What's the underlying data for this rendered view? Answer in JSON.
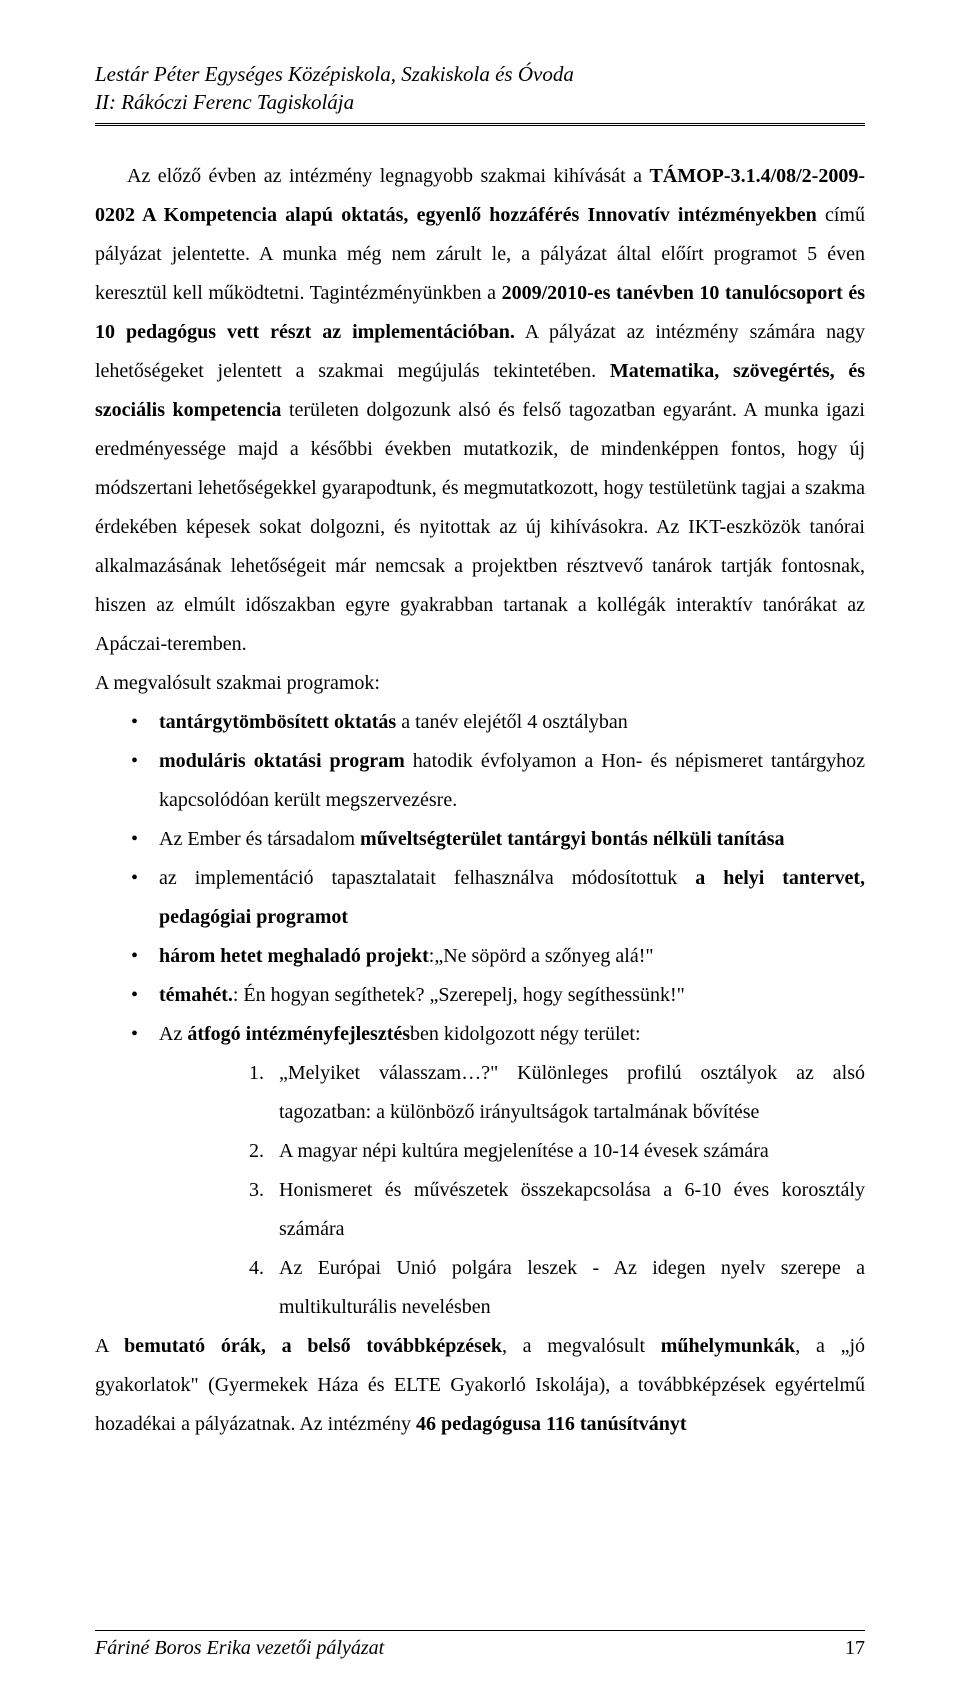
{
  "header": {
    "line1": "Lestár Péter Egységes Középiskola, Szakiskola és Óvoda",
    "line2": "II: Rákóczi Ferenc Tagiskolája"
  },
  "body": {
    "p1_pre": "Az előző évben az intézmény legnagyobb szakmai kihívását a ",
    "p1_b1": "TÁMOP-3.1.4/08/2-2009-0202 A Kompetencia alapú oktatás, egyenlő hozzáférés Innovatív intézményekben",
    "p1_mid1": " című pályázat jelentette. A munka még nem zárult le, a pályázat által előírt programot 5 éven keresztül kell működtetni. Tagintézményünkben a ",
    "p1_b2": "2009/2010-es tanévben 10 tanulócsoport és 10 pedagógus vett részt az implementációban.",
    "p1_mid2": " A pályázat az intézmény számára nagy lehetőségeket jelentett a szakmai megújulás tekintetében. ",
    "p1_b3": "Matematika, szövegértés, és szociális kompetencia ",
    "p1_end": "területen dolgozunk alsó és felső tagozatban egyaránt. A munka igazi eredményessége majd a későbbi években mutatkozik, de mindenképpen fontos, hogy új módszertani lehetőségekkel gyarapodtunk, és megmutatkozott, hogy testületünk tagjai a szakma érdekében képesek sokat dolgozni, és nyitottak az új kihívásokra. Az IKT-eszközök tanórai alkalmazásának lehetőségeit már nemcsak a projektben résztvevő tanárok tartják fontosnak, hiszen az elmúlt időszakban egyre gyakrabban tartanak a kollégák interaktív tanórákat az Apáczai-teremben.",
    "p2": "A megvalósult szakmai programok:"
  },
  "bullets": {
    "b1_bold": "tantárgytömbösített oktatás ",
    "b1_rest": "a tanév elejétől 4 osztályban",
    "b2_bold": "moduláris oktatási program ",
    "b2_rest": "hatodik évfolyamon a Hon- és népismeret tantárgyhoz kapcsolódóan került megszervezésre.",
    "b3_pre": "Az Ember és társadalom ",
    "b3_bold": "műveltségterület tantárgyi bontás nélküli tanítása",
    "b4_pre": "az implementáció tapasztalatait felhasználva módosítottuk ",
    "b4_bold": "a helyi tantervet, pedagógiai programot",
    "b5_bold": "három hetet meghaladó projekt",
    "b5_rest": ":„Ne söpörd a szőnyeg alá!\"",
    "b6_bold": "témahét.",
    "b6_rest": ": Én hogyan segíthetek? „Szerepelj, hogy segíthessünk!\"",
    "b7_pre": "Az ",
    "b7_bold": "átfogó intézményfejlesztés",
    "b7_rest": "ben kidolgozott négy terület:"
  },
  "numbered": {
    "n1": "„Melyiket válasszam…?\" Különleges profilú osztályok az alsó tagozatban: a különböző irányultságok tartalmának bővítése",
    "n2": "A magyar népi kultúra megjelenítése a 10-14 évesek számára",
    "n3": "Honismeret és művészetek összekapcsolása a 6-10 éves korosztály számára",
    "n4": " Az Európai Unió polgára leszek - Az idegen nyelv szerepe a multikulturális nevelésben"
  },
  "closing": {
    "c_pre": "A ",
    "c_b1": "bemutató órák, a belső továbbképzések",
    "c_mid1": ", a megvalósult ",
    "c_b2": "műhelymunkák",
    "c_mid2": ", a „jó gyakorlatok\" (Gyermekek Háza és ELTE Gyakorló Iskolája), a továbbképzések egyértelmű hozadékai a pályázatnak. Az intézmény ",
    "c_b3": "46 pedagógusa 116 tanúsítványt"
  },
  "footer": {
    "left": "Fáriné Boros Erika vezetői pályázat",
    "page": "17"
  }
}
